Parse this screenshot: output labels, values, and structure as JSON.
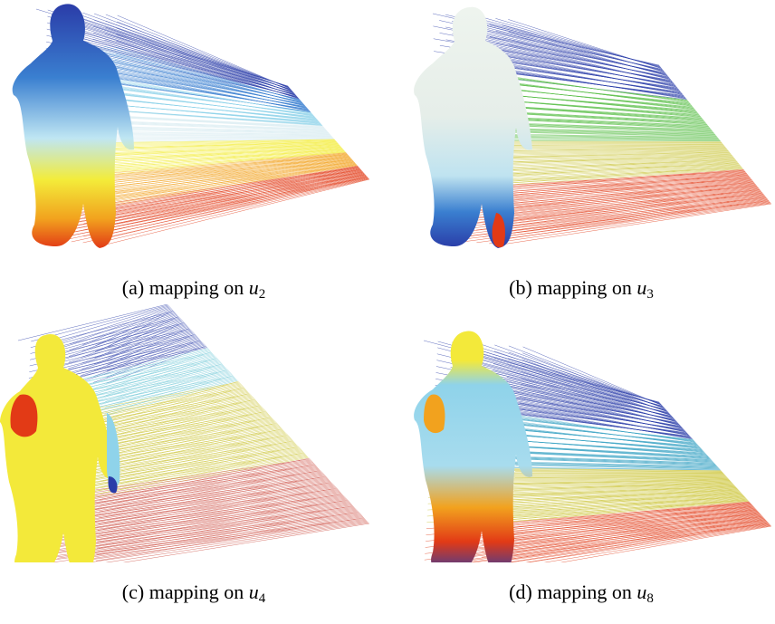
{
  "figures": [
    {
      "label": "(a)",
      "text": "mapping on",
      "var": "u",
      "sub": "2"
    },
    {
      "label": "(b)",
      "text": "mapping on",
      "var": "u",
      "sub": "3"
    },
    {
      "label": "(c)",
      "text": "mapping on",
      "var": "u",
      "sub": "4"
    },
    {
      "label": "(d)",
      "text": "mapping on",
      "var": "u",
      "sub": "8"
    }
  ],
  "colors": {
    "colormap": [
      "#2a3ca8",
      "#3a7fd0",
      "#8fd3ea",
      "#d9ecf2",
      "#f3ec3a",
      "#f2a21e",
      "#e23a16"
    ],
    "background": "#ffffff"
  }
}
